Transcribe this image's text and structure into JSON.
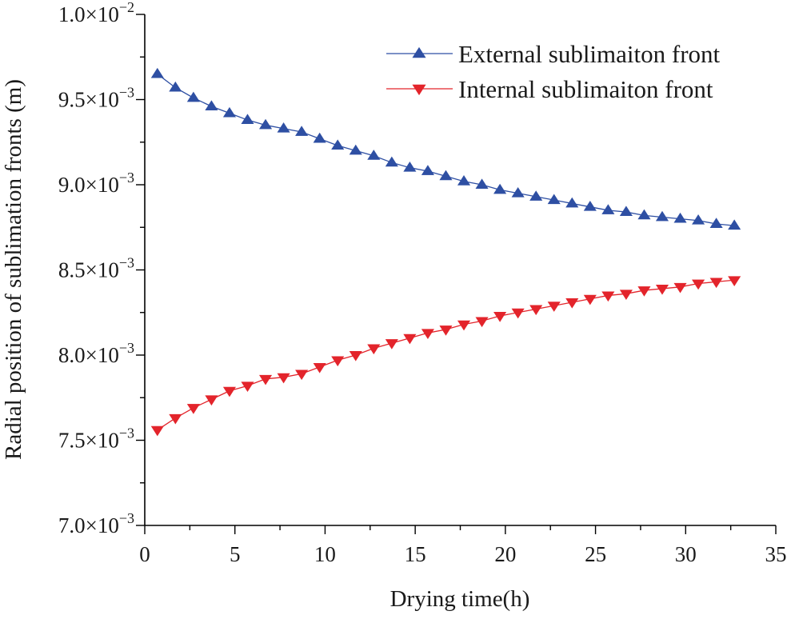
{
  "chart_data": {
    "type": "line",
    "title": "",
    "xlabel": "Drying time(h)",
    "ylabel": "Radial position of sublimation fronts (m)",
    "xlim": [
      0,
      35
    ],
    "ylim": [
      0.007,
      0.01
    ],
    "xticks": [
      0,
      5,
      10,
      15,
      20,
      25,
      30,
      35
    ],
    "yticks": [
      {
        "value": 0.007,
        "mantissa": "7.0",
        "exponent": "−3"
      },
      {
        "value": 0.0075,
        "mantissa": "7.5",
        "exponent": "−3"
      },
      {
        "value": 0.008,
        "mantissa": "8.0",
        "exponent": "−3"
      },
      {
        "value": 0.0085,
        "mantissa": "8.5",
        "exponent": "−3"
      },
      {
        "value": 0.009,
        "mantissa": "9.0",
        "exponent": "−3"
      },
      {
        "value": 0.0095,
        "mantissa": "9.5",
        "exponent": "−3"
      },
      {
        "value": 0.01,
        "mantissa": "1.0",
        "exponent": "−2"
      }
    ],
    "tick_times": "×10",
    "grid": false,
    "legend_position": "top-right",
    "x": [
      0.7,
      1.7,
      2.7,
      3.7,
      4.7,
      5.7,
      6.7,
      7.7,
      8.7,
      9.7,
      10.7,
      11.7,
      12.7,
      13.7,
      14.7,
      15.7,
      16.7,
      17.7,
      18.7,
      19.7,
      20.7,
      21.7,
      22.7,
      23.7,
      24.7,
      25.7,
      26.7,
      27.7,
      28.7,
      29.7,
      30.7,
      31.7,
      32.7
    ],
    "series": [
      {
        "name": "External sublimaiton front",
        "color": "#2e4fa3",
        "marker": "triangle-up",
        "values": [
          0.00965,
          0.00957,
          0.00951,
          0.00946,
          0.00942,
          0.00938,
          0.00935,
          0.00933,
          0.00931,
          0.00927,
          0.00923,
          0.0092,
          0.00917,
          0.00913,
          0.0091,
          0.00908,
          0.00905,
          0.00902,
          0.009,
          0.00897,
          0.00895,
          0.00893,
          0.00891,
          0.00889,
          0.00887,
          0.00885,
          0.00884,
          0.00882,
          0.00881,
          0.0088,
          0.00879,
          0.00877,
          0.00876
        ]
      },
      {
        "name": "Internal sublimaiton front",
        "color": "#e3242b",
        "marker": "triangle-down",
        "values": [
          0.00756,
          0.00763,
          0.00769,
          0.00774,
          0.00779,
          0.00782,
          0.00786,
          0.00787,
          0.00789,
          0.00793,
          0.00797,
          0.008,
          0.00804,
          0.00807,
          0.0081,
          0.00813,
          0.00815,
          0.00818,
          0.0082,
          0.00823,
          0.00825,
          0.00827,
          0.00829,
          0.00831,
          0.00833,
          0.00835,
          0.00836,
          0.00838,
          0.00839,
          0.0084,
          0.00842,
          0.00843,
          0.00844
        ]
      }
    ]
  }
}
